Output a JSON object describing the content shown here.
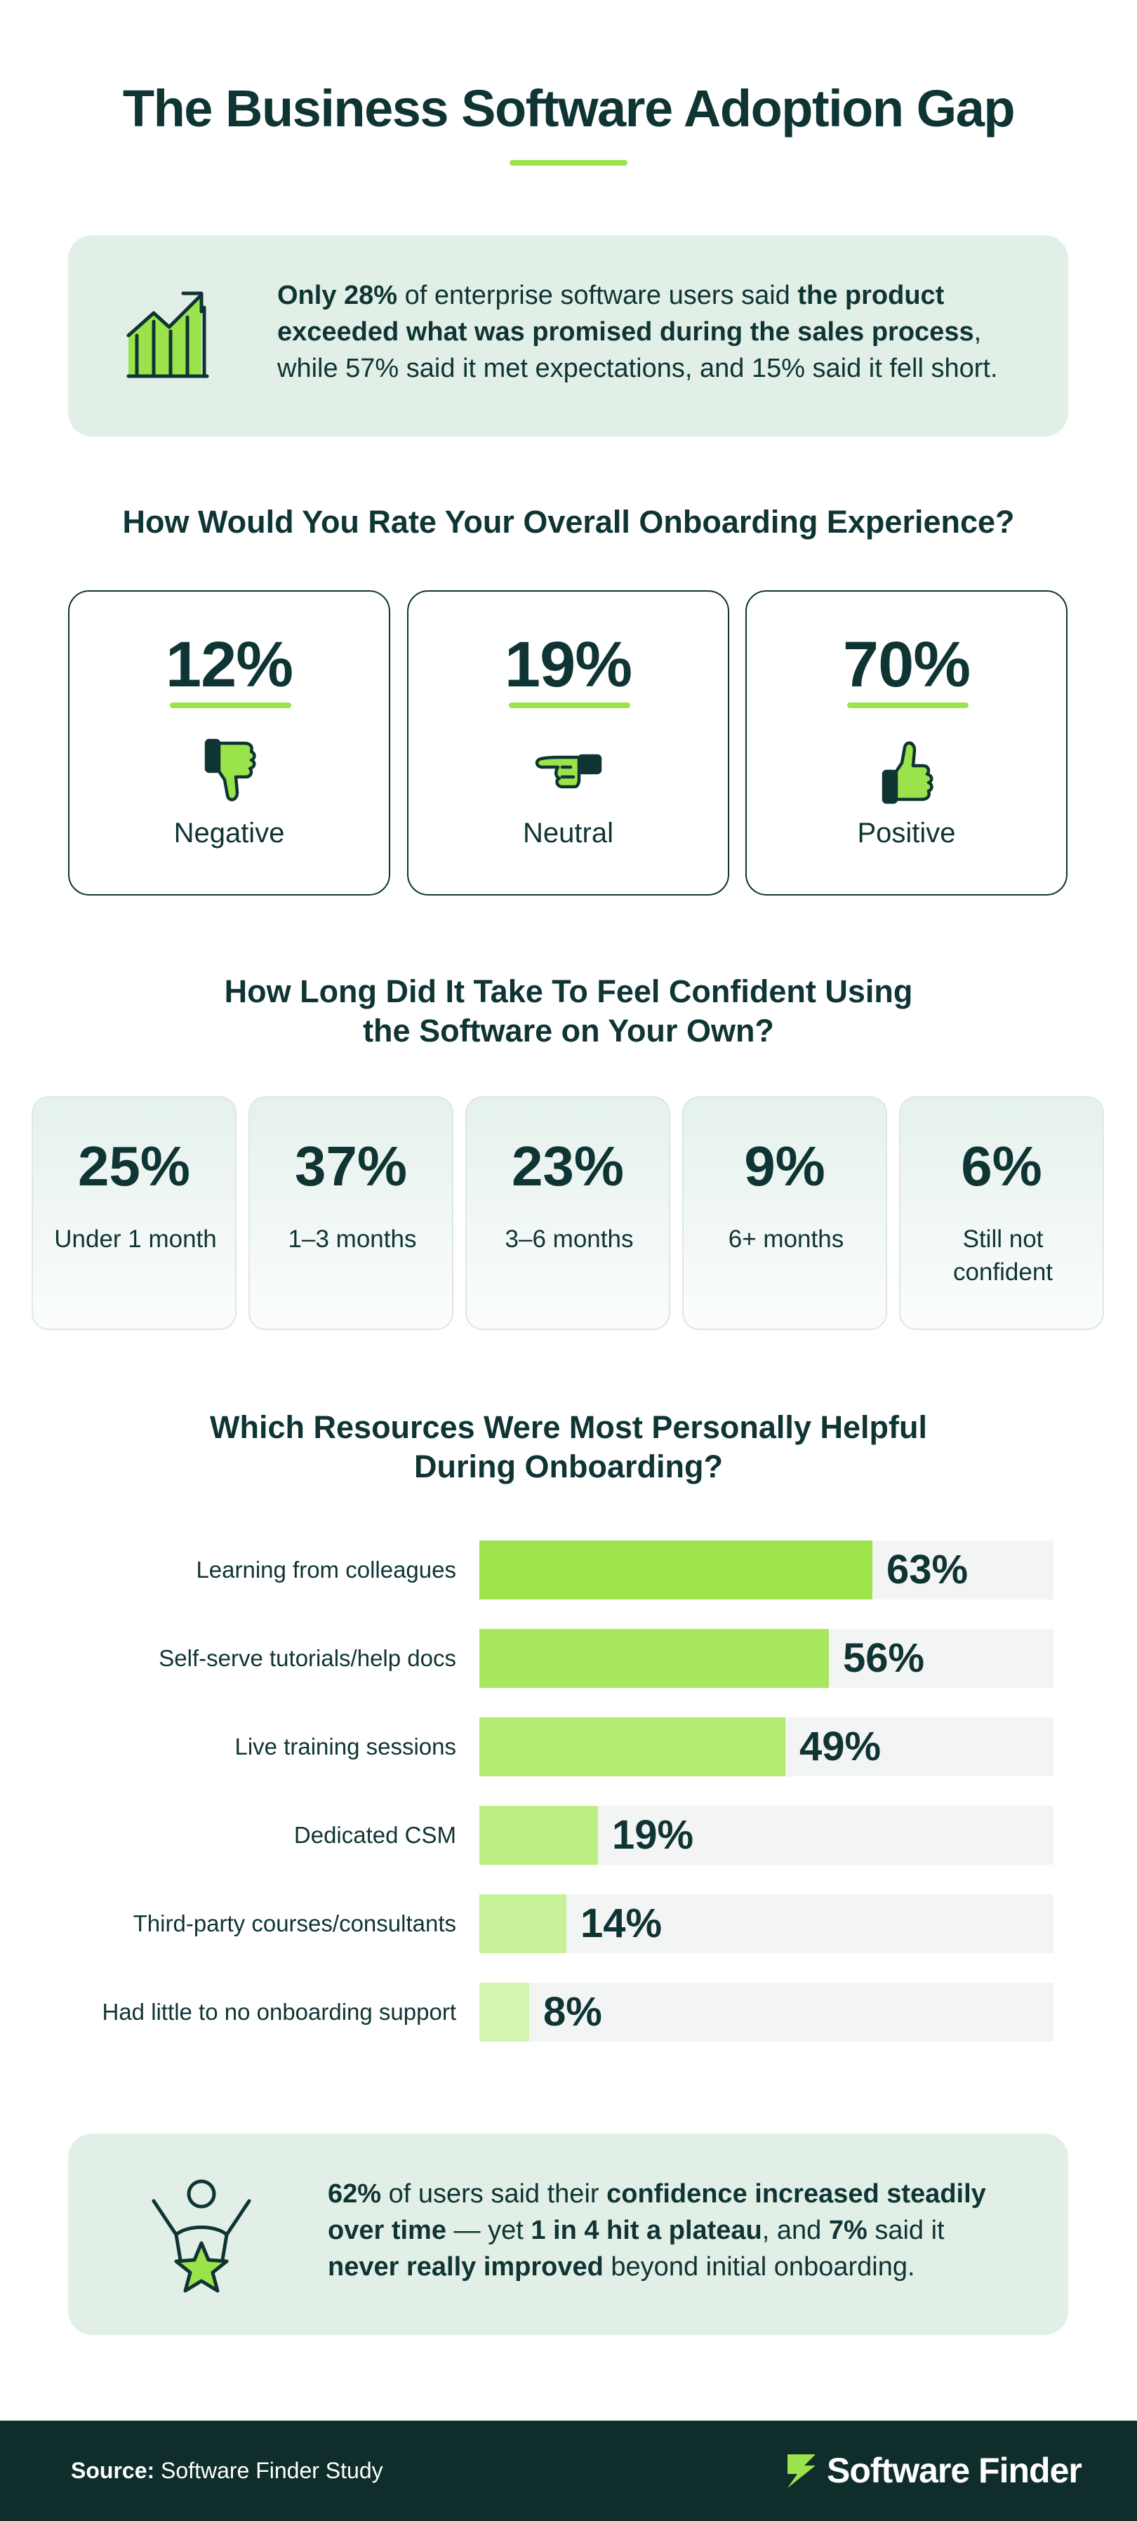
{
  "title": "The Business Software Adoption Gap",
  "callout_top": {
    "icon": "chart-growth-icon",
    "line1_b1": "Only 28%",
    "line1_t1": " of enterprise software users said ",
    "line1_b2": "the product",
    "line2_b1": "exceeded what was promised during the sales process",
    "line2_t1": ",",
    "line3": "while 57% said it met expectations, and 15% said it fell short."
  },
  "onboarding": {
    "title": "How Would You Rate Your Overall Onboarding Experience?",
    "cards": [
      {
        "value": "12%",
        "label": "Negative",
        "icon": "thumbs-down-icon"
      },
      {
        "value": "19%",
        "label": "Neutral",
        "icon": "pointing-hand-icon"
      },
      {
        "value": "70%",
        "label": "Positive",
        "icon": "thumbs-up-icon"
      }
    ]
  },
  "confidence": {
    "title_line1": "How Long Did It Take To Feel Confident Using",
    "title_line2": "the Software on Your Own?",
    "cards": [
      {
        "value": "25%",
        "label": "Under 1 month"
      },
      {
        "value": "37%",
        "label": "1–3 months"
      },
      {
        "value": "23%",
        "label": "3–6 months"
      },
      {
        "value": "9%",
        "label": "6+ months"
      },
      {
        "value": "6%",
        "label": "Still not confident"
      }
    ]
  },
  "resources": {
    "title_line1": "Which Resources Were Most Personally Helpful",
    "title_line2": "During Onboarding?"
  },
  "chart_data": {
    "type": "bar",
    "orientation": "horizontal",
    "categories": [
      "Learning from colleagues",
      "Self-serve tutorials/help docs",
      "Live training sessions",
      "Dedicated CSM",
      "Third-party courses/consultants",
      "Had little to no onboarding support"
    ],
    "values": [
      63,
      56,
      49,
      19,
      14,
      8
    ],
    "value_labels": [
      "63%",
      "56%",
      "49%",
      "19%",
      "14%",
      "8%"
    ],
    "xlim": [
      0,
      92
    ],
    "bar_colors": [
      "#9ee34c",
      "#a8e75e",
      "#b3eb71",
      "#bdee84",
      "#c8f299",
      "#d4f5b0"
    ],
    "track_color": "#f3f5f4"
  },
  "callout_bottom": {
    "icon": "person-star-icon",
    "line1_b1": "62%",
    "line1_t1": " of users said their ",
    "line1_b2": "confidence increased steadily",
    "line2_b1": "over time",
    "line2_t1": " — yet ",
    "line2_b2": "1 in 4 hit a plateau",
    "line2_t2": ", and ",
    "line2_b3": "7%",
    "line2_t3": " said it",
    "line3_b1": "never really improved",
    "line3_t1": " beyond initial onboarding."
  },
  "footer": {
    "source_label": "Source:",
    "source_text": " Software Finder Study",
    "logo_text": "Software Finder",
    "logo_icon": "software-finder-logo-icon"
  },
  "colors": {
    "accent": "#9be34a",
    "dark": "#0f3434",
    "footer_bg": "#0f2d2b",
    "callout_bg": "#e1efe7"
  }
}
